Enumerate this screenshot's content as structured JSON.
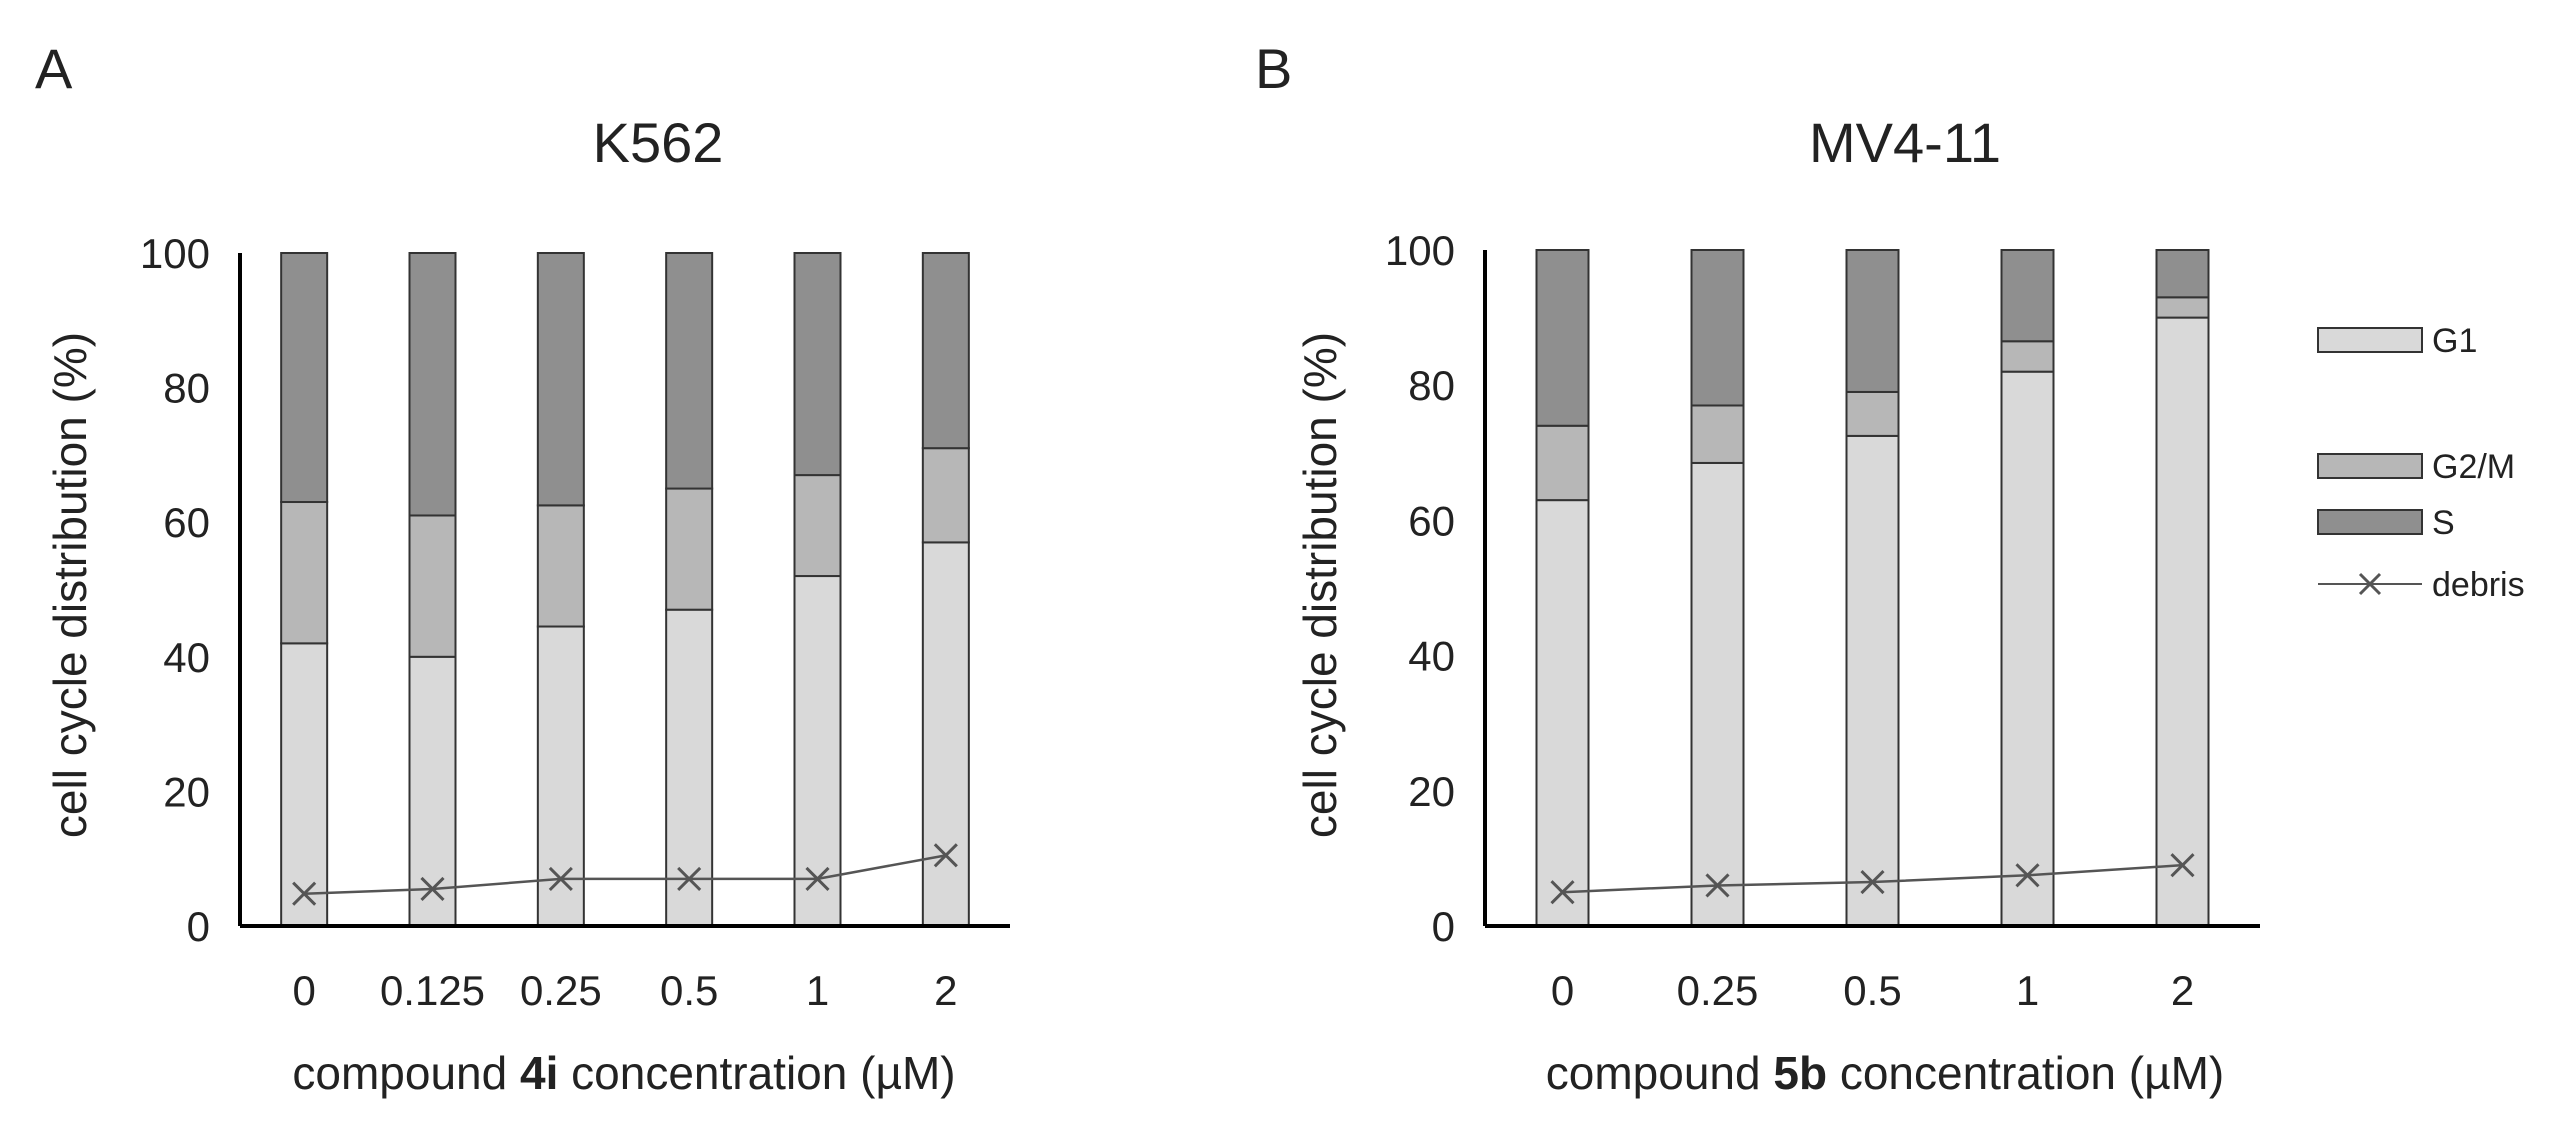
{
  "colors": {
    "G1": "#d9d9d9",
    "G2/M": "#b7b7b7",
    "S": "#8f8f8f",
    "debris": "#555555",
    "axis": "#000000",
    "text": "#222222"
  },
  "legend": {
    "items": [
      "G1",
      "G2/M",
      "S",
      "debris"
    ]
  },
  "chart_data": [
    {
      "type": "bar",
      "stacked": true,
      "panel": "A",
      "title": "K562",
      "ylabel": "cell cycle distribution (%)",
      "xlabel_prefix": "compound ",
      "xlabel_bold": "4i",
      "xlabel_suffix": " concentration (µM)",
      "ylim": [
        0,
        100
      ],
      "yticks": [
        0,
        20,
        40,
        60,
        80,
        100
      ],
      "categories": [
        "0",
        "0.125",
        "0.25",
        "0.5",
        "1",
        "2"
      ],
      "series": [
        {
          "name": "G1",
          "values": [
            42,
            40,
            44.5,
            47,
            52,
            57
          ]
        },
        {
          "name": "G2/M",
          "values": [
            21,
            21,
            18,
            18,
            15,
            14
          ]
        },
        {
          "name": "S",
          "values": [
            37,
            39,
            37.5,
            35,
            33,
            29
          ]
        }
      ],
      "line": {
        "name": "debris",
        "values": [
          4.8,
          5.5,
          7,
          7,
          7,
          10.5
        ]
      }
    },
    {
      "type": "bar",
      "stacked": true,
      "panel": "B",
      "title": "MV4-11",
      "ylabel": "cell cycle distribution (%)",
      "xlabel_prefix": "compound ",
      "xlabel_bold": "5b",
      "xlabel_suffix": " concentration (µM)",
      "ylim": [
        0,
        100
      ],
      "yticks": [
        0,
        20,
        40,
        60,
        80,
        100
      ],
      "categories": [
        "0",
        "0.25",
        "0.5",
        "1",
        "2"
      ],
      "series": [
        {
          "name": "G1",
          "values": [
            63,
            68.5,
            72.5,
            82,
            90
          ]
        },
        {
          "name": "G2/M",
          "values": [
            11,
            8.5,
            6.5,
            4.5,
            3
          ]
        },
        {
          "name": "S",
          "values": [
            26,
            23,
            21,
            13.5,
            7
          ]
        }
      ],
      "line": {
        "name": "debris",
        "values": [
          5,
          6,
          6.5,
          7.5,
          9
        ]
      }
    }
  ]
}
